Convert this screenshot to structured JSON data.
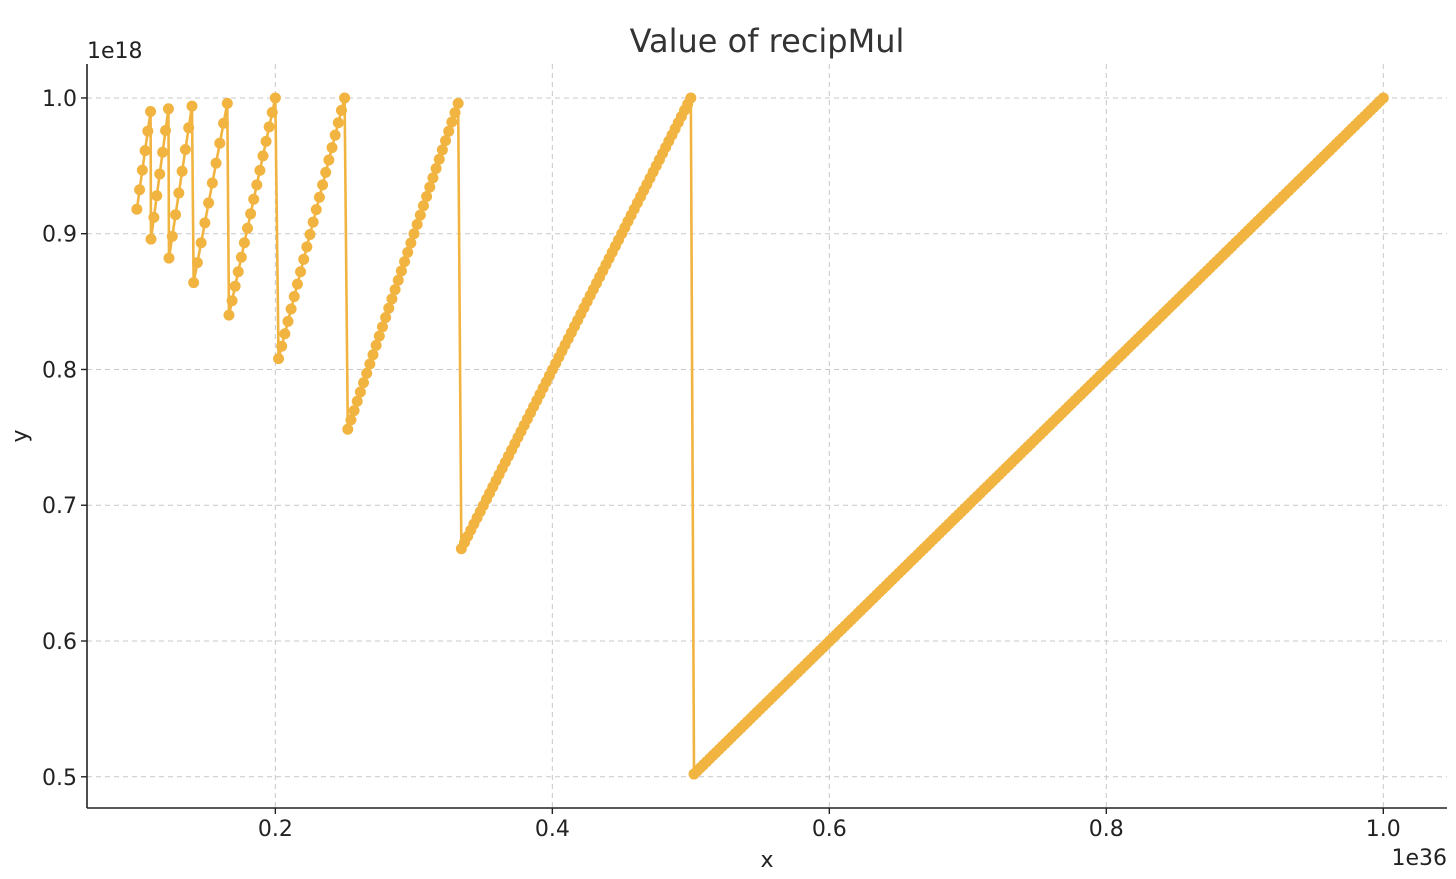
{
  "chart_data": {
    "type": "line",
    "title": "Value of recipMul",
    "xlabel": "x",
    "ylabel": "y",
    "x_offset_label": "1e36",
    "y_offset_label": "1e18",
    "xlim": [
      0.064,
      1.046
    ],
    "ylim": [
      0.477,
      1.025
    ],
    "x_ticks": [
      0.2,
      0.4,
      0.6,
      0.8,
      1.0
    ],
    "x_tick_labels": [
      "0.2",
      "0.4",
      "0.6",
      "0.8",
      "1.0"
    ],
    "y_ticks": [
      0.5,
      0.6,
      0.7,
      0.8,
      0.9,
      1.0
    ],
    "y_tick_labels": [
      "0.5",
      "0.6",
      "0.7",
      "0.8",
      "0.9",
      "1.0"
    ],
    "grid": true,
    "marker": "circle",
    "series": [
      {
        "color": "#f2b441",
        "segments": [
          {
            "x_start": 0.1,
            "x_end": 0.1099,
            "y_start": 0.918,
            "y_end": 0.99,
            "points": 6
          },
          {
            "x_start": 0.1102,
            "x_end": 0.1228,
            "y_start": 0.896,
            "y_end": 0.992,
            "points": 7
          },
          {
            "x_start": 0.1232,
            "x_end": 0.1398,
            "y_start": 0.882,
            "y_end": 0.994,
            "points": 8
          },
          {
            "x_start": 0.141,
            "x_end": 0.1653,
            "y_start": 0.864,
            "y_end": 0.996,
            "points": 10
          },
          {
            "x_start": 0.1665,
            "x_end": 0.2,
            "y_start": 0.84,
            "y_end": 1.0,
            "points": 16
          },
          {
            "x_start": 0.2023,
            "x_end": 0.25,
            "y_start": 0.808,
            "y_end": 1.0,
            "points": 22
          },
          {
            "x_start": 0.2523,
            "x_end": 0.332,
            "y_start": 0.756,
            "y_end": 0.996,
            "points": 36
          },
          {
            "x_start": 0.3343,
            "x_end": 0.5,
            "y_start": 0.668,
            "y_end": 1.0,
            "points": 74
          },
          {
            "x_start": 0.5023,
            "x_end": 1.0,
            "y_start": 0.502,
            "y_end": 1.0,
            "points": 220
          }
        ]
      }
    ]
  }
}
